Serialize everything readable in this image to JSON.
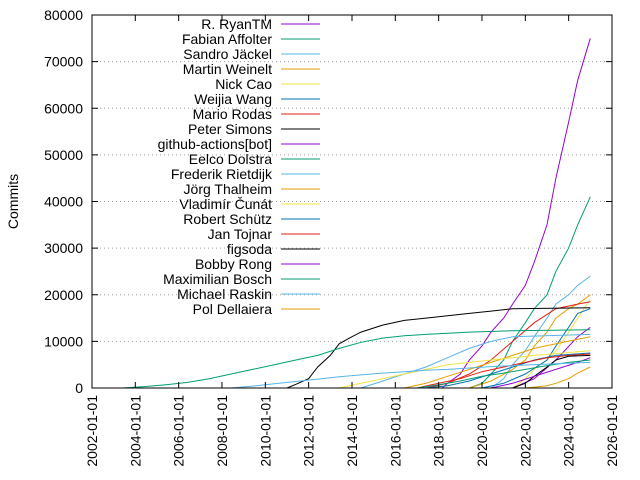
{
  "chart_data": {
    "type": "line",
    "title": "",
    "xlabel": "",
    "ylabel": "Commits",
    "xlim": [
      "2002-01-01",
      "2026-01-01"
    ],
    "ylim": [
      0,
      80000
    ],
    "x_ticks": [
      "2002-01-01",
      "2004-01-01",
      "2006-01-01",
      "2008-01-01",
      "2010-01-01",
      "2012-01-01",
      "2014-01-01",
      "2016-01-01",
      "2018-01-01",
      "2020-01-01",
      "2022-01-01",
      "2024-01-01",
      "2026-01-01"
    ],
    "y_ticks": [
      0,
      10000,
      20000,
      30000,
      40000,
      50000,
      60000,
      70000,
      80000
    ],
    "grid": "y-dotted",
    "legend_position": "top-left",
    "series": [
      {
        "name": "R. RyanTM",
        "color": "#9400d3",
        "points": [
          [
            "2018-03-01",
            0
          ],
          [
            "2018-06-01",
            1000
          ],
          [
            "2019-01-01",
            3000
          ],
          [
            "2019-06-01",
            6000
          ],
          [
            "2020-01-01",
            9000
          ],
          [
            "2020-06-01",
            12000
          ],
          [
            "2021-01-01",
            15000
          ],
          [
            "2021-06-01",
            18000
          ],
          [
            "2022-01-01",
            22000
          ],
          [
            "2022-06-01",
            27000
          ],
          [
            "2023-01-01",
            35000
          ],
          [
            "2023-06-01",
            45000
          ],
          [
            "2024-01-01",
            57000
          ],
          [
            "2024-06-01",
            66000
          ],
          [
            "2025-01-01",
            75000
          ]
        ]
      },
      {
        "name": "Fabian Affolter",
        "color": "#009e73",
        "points": [
          [
            "2019-06-01",
            0
          ],
          [
            "2020-01-01",
            1000
          ],
          [
            "2020-06-01",
            3000
          ],
          [
            "2021-01-01",
            6000
          ],
          [
            "2021-06-01",
            10000
          ],
          [
            "2022-01-01",
            14000
          ],
          [
            "2022-06-01",
            17000
          ],
          [
            "2023-01-01",
            20000
          ],
          [
            "2023-06-01",
            25000
          ],
          [
            "2024-01-01",
            30000
          ],
          [
            "2024-06-01",
            35000
          ],
          [
            "2025-01-01",
            41000
          ]
        ]
      },
      {
        "name": "Sandro Jäckel",
        "color": "#56b4e9",
        "points": [
          [
            "2020-06-01",
            0
          ],
          [
            "2021-01-01",
            2000
          ],
          [
            "2021-06-01",
            5000
          ],
          [
            "2022-01-01",
            8000
          ],
          [
            "2022-06-01",
            11000
          ],
          [
            "2023-01-01",
            15000
          ],
          [
            "2023-06-01",
            18000
          ],
          [
            "2024-01-01",
            20000
          ],
          [
            "2024-06-01",
            22000
          ],
          [
            "2025-01-01",
            24000
          ]
        ]
      },
      {
        "name": "Martin Weinelt",
        "color": "#e69f00",
        "points": [
          [
            "2019-06-01",
            0
          ],
          [
            "2020-06-01",
            1500
          ],
          [
            "2021-06-01",
            4000
          ],
          [
            "2022-01-01",
            6000
          ],
          [
            "2022-06-01",
            9000
          ],
          [
            "2023-01-01",
            12000
          ],
          [
            "2023-06-01",
            15000
          ],
          [
            "2024-01-01",
            17000
          ],
          [
            "2024-06-01",
            18000
          ],
          [
            "2025-01-01",
            20000
          ]
        ]
      },
      {
        "name": "Nick Cao",
        "color": "#f0e442",
        "points": [
          [
            "2021-06-01",
            0
          ],
          [
            "2022-01-01",
            2000
          ],
          [
            "2022-06-01",
            4000
          ],
          [
            "2023-01-01",
            6000
          ],
          [
            "2023-06-01",
            8000
          ],
          [
            "2024-01-01",
            12000
          ],
          [
            "2024-06-01",
            15000
          ],
          [
            "2025-01-01",
            19000
          ]
        ]
      },
      {
        "name": "Weijia Wang",
        "color": "#0072b2",
        "points": [
          [
            "2020-01-01",
            0
          ],
          [
            "2021-01-01",
            1000
          ],
          [
            "2022-01-01",
            3000
          ],
          [
            "2023-01-01",
            6000
          ],
          [
            "2023-06-01",
            9000
          ],
          [
            "2024-01-01",
            13000
          ],
          [
            "2024-06-01",
            16000
          ],
          [
            "2025-01-01",
            17000
          ]
        ]
      },
      {
        "name": "Mario Rodas",
        "color": "#e51e10",
        "points": [
          [
            "2017-06-01",
            0
          ],
          [
            "2018-06-01",
            1000
          ],
          [
            "2019-06-01",
            3000
          ],
          [
            "2020-06-01",
            6000
          ],
          [
            "2021-06-01",
            10000
          ],
          [
            "2022-06-01",
            14000
          ],
          [
            "2023-06-01",
            17000
          ],
          [
            "2024-06-01",
            18000
          ],
          [
            "2025-01-01",
            18500
          ]
        ]
      },
      {
        "name": "Peter Simons",
        "color": "#000000",
        "points": [
          [
            "2011-01-01",
            0
          ],
          [
            "2011-06-01",
            800
          ],
          [
            "2012-01-01",
            2000
          ],
          [
            "2012-06-01",
            4500
          ],
          [
            "2013-01-01",
            7000
          ],
          [
            "2013-06-01",
            9500
          ],
          [
            "2014-01-01",
            11000
          ],
          [
            "2014-06-01",
            12000
          ],
          [
            "2015-06-01",
            13500
          ],
          [
            "2016-06-01",
            14500
          ],
          [
            "2017-06-01",
            15000
          ],
          [
            "2018-06-01",
            15500
          ],
          [
            "2019-06-01",
            16000
          ],
          [
            "2020-06-01",
            16500
          ],
          [
            "2021-06-01",
            17000
          ],
          [
            "2025-01-01",
            17200
          ]
        ]
      },
      {
        "name": "github-actions[bot]",
        "color": "#9400d3",
        "points": [
          [
            "2021-06-01",
            0
          ],
          [
            "2022-06-01",
            2000
          ],
          [
            "2023-06-01",
            6000
          ],
          [
            "2024-06-01",
            11000
          ],
          [
            "2025-01-01",
            13000
          ]
        ]
      },
      {
        "name": "Eelco Dolstra",
        "color": "#009e73",
        "points": [
          [
            "2003-06-01",
            0
          ],
          [
            "2004-06-01",
            300
          ],
          [
            "2005-06-01",
            700
          ],
          [
            "2006-06-01",
            1200
          ],
          [
            "2007-06-01",
            2000
          ],
          [
            "2008-06-01",
            3000
          ],
          [
            "2009-06-01",
            4000
          ],
          [
            "2010-06-01",
            5000
          ],
          [
            "2011-06-01",
            6000
          ],
          [
            "2012-06-01",
            7000
          ],
          [
            "2013-06-01",
            8500
          ],
          [
            "2014-06-01",
            9800
          ],
          [
            "2015-06-01",
            10700
          ],
          [
            "2016-06-01",
            11200
          ],
          [
            "2017-06-01",
            11500
          ],
          [
            "2019-06-01",
            12000
          ],
          [
            "2021-06-01",
            12300
          ],
          [
            "2025-01-01",
            12500
          ]
        ]
      },
      {
        "name": "Frederik Rietdijk",
        "color": "#56b4e9",
        "points": [
          [
            "2014-06-01",
            0
          ],
          [
            "2015-06-01",
            1500
          ],
          [
            "2016-06-01",
            3000
          ],
          [
            "2017-06-01",
            4500
          ],
          [
            "2018-06-01",
            6500
          ],
          [
            "2019-06-01",
            8500
          ],
          [
            "2020-06-01",
            10000
          ],
          [
            "2021-06-01",
            11000
          ],
          [
            "2025-01-01",
            11500
          ]
        ]
      },
      {
        "name": "Jörg Thalheim",
        "color": "#e69f00",
        "points": [
          [
            "2016-06-01",
            0
          ],
          [
            "2017-06-01",
            1000
          ],
          [
            "2018-06-01",
            2500
          ],
          [
            "2019-06-01",
            4000
          ],
          [
            "2020-06-01",
            5500
          ],
          [
            "2021-06-01",
            7000
          ],
          [
            "2022-06-01",
            8500
          ],
          [
            "2023-06-01",
            9500
          ],
          [
            "2025-01-01",
            11000
          ]
        ]
      },
      {
        "name": "Vladimír Čunát",
        "color": "#f0e442",
        "points": [
          [
            "2013-06-01",
            0
          ],
          [
            "2014-06-01",
            1000
          ],
          [
            "2015-06-01",
            2000
          ],
          [
            "2016-06-01",
            3000
          ],
          [
            "2017-06-01",
            4000
          ],
          [
            "2018-06-01",
            5000
          ],
          [
            "2019-06-01",
            5500
          ],
          [
            "2020-06-01",
            6000
          ],
          [
            "2021-06-01",
            6500
          ],
          [
            "2022-06-01",
            7000
          ],
          [
            "2025-01-01",
            8000
          ]
        ]
      },
      {
        "name": "Robert Schütz",
        "color": "#0072b2",
        "points": [
          [
            "2017-06-01",
            0
          ],
          [
            "2018-06-01",
            500
          ],
          [
            "2019-06-01",
            1500
          ],
          [
            "2020-06-01",
            3000
          ],
          [
            "2021-06-01",
            4500
          ],
          [
            "2022-06-01",
            6000
          ],
          [
            "2023-06-01",
            7000
          ],
          [
            "2025-01-01",
            7500
          ]
        ]
      },
      {
        "name": "Jan Tojnar",
        "color": "#e51e10",
        "points": [
          [
            "2017-01-01",
            0
          ],
          [
            "2018-01-01",
            1000
          ],
          [
            "2019-01-01",
            2000
          ],
          [
            "2020-01-01",
            3500
          ],
          [
            "2021-01-01",
            4500
          ],
          [
            "2022-01-01",
            5500
          ],
          [
            "2023-01-01",
            6500
          ],
          [
            "2024-01-01",
            7000
          ],
          [
            "2025-01-01",
            7300
          ]
        ]
      },
      {
        "name": "figsoda",
        "color": "#000000",
        "points": [
          [
            "2021-06-01",
            0
          ],
          [
            "2022-01-01",
            1000
          ],
          [
            "2022-06-01",
            2500
          ],
          [
            "2023-01-01",
            4500
          ],
          [
            "2023-06-01",
            6000
          ],
          [
            "2024-01-01",
            6800
          ],
          [
            "2025-01-01",
            7000
          ]
        ]
      },
      {
        "name": "Bobby Rong",
        "color": "#9400d3",
        "points": [
          [
            "2020-06-01",
            0
          ],
          [
            "2021-06-01",
            1000
          ],
          [
            "2022-06-01",
            2500
          ],
          [
            "2023-06-01",
            4000
          ],
          [
            "2024-06-01",
            5500
          ],
          [
            "2025-01-01",
            6500
          ]
        ]
      },
      {
        "name": "Maximilian Bosch",
        "color": "#009e73",
        "points": [
          [
            "2017-01-01",
            0
          ],
          [
            "2018-01-01",
            700
          ],
          [
            "2019-01-01",
            1500
          ],
          [
            "2020-01-01",
            2500
          ],
          [
            "2021-01-01",
            3200
          ],
          [
            "2022-01-01",
            4000
          ],
          [
            "2023-01-01",
            4800
          ],
          [
            "2024-01-01",
            5500
          ],
          [
            "2025-01-01",
            6000
          ]
        ]
      },
      {
        "name": "Michael Raskin",
        "color": "#56b4e9",
        "points": [
          [
            "2008-06-01",
            0
          ],
          [
            "2009-06-01",
            400
          ],
          [
            "2010-06-01",
            900
          ],
          [
            "2011-06-01",
            1400
          ],
          [
            "2012-06-01",
            1900
          ],
          [
            "2013-06-01",
            2400
          ],
          [
            "2014-06-01",
            2800
          ],
          [
            "2015-06-01",
            3200
          ],
          [
            "2016-06-01",
            3500
          ],
          [
            "2017-06-01",
            3800
          ],
          [
            "2018-06-01",
            4000
          ],
          [
            "2019-06-01",
            4300
          ],
          [
            "2020-06-01",
            4600
          ],
          [
            "2021-06-01",
            4800
          ],
          [
            "2023-06-01",
            5200
          ],
          [
            "2025-01-01",
            5500
          ]
        ]
      },
      {
        "name": "Pol Dellaiera",
        "color": "#e69f00",
        "points": [
          [
            "2022-01-01",
            0
          ],
          [
            "2023-01-01",
            500
          ],
          [
            "2023-06-01",
            1000
          ],
          [
            "2024-01-01",
            2000
          ],
          [
            "2024-06-01",
            3200
          ],
          [
            "2025-01-01",
            4500
          ]
        ]
      }
    ]
  }
}
